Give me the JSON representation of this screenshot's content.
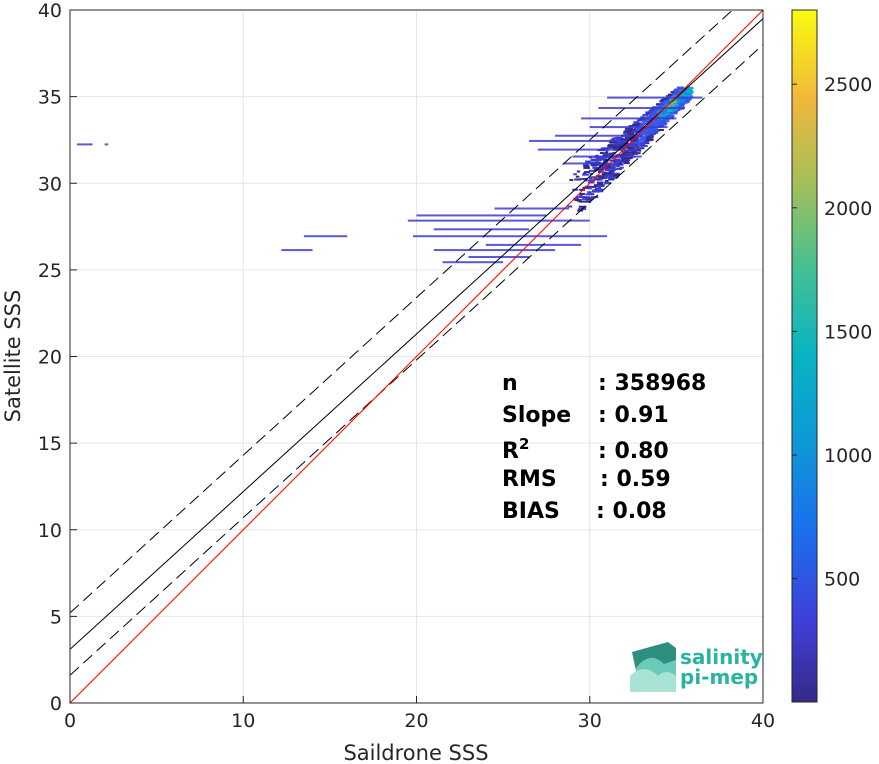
{
  "chart_data": {
    "type": "scatter",
    "subtype": "2d-density-heatmap",
    "xlabel": "Saildrone SSS",
    "ylabel": "Satellite SSS",
    "xlim": [
      0,
      40
    ],
    "ylim": [
      0,
      40
    ],
    "xticks": [
      0,
      10,
      20,
      30,
      40
    ],
    "yticks": [
      0,
      5,
      10,
      15,
      20,
      25,
      30,
      35,
      40
    ],
    "grid": true,
    "colorbar": {
      "colormap": "parula",
      "range": [
        1,
        2800
      ],
      "ticks": [
        500,
        1000,
        1500,
        2000,
        2500
      ]
    },
    "reference_lines": {
      "identity": {
        "slope": 1,
        "intercept": 0,
        "color": "#ff0000"
      },
      "fit": {
        "slope": 0.91,
        "intercept": 3.1,
        "color": "#000000"
      },
      "fit_upper": {
        "slope": 0.91,
        "intercept": 5.2,
        "style": "dashed"
      },
      "fit_lower": {
        "slope": 0.91,
        "intercept": 1.6,
        "style": "dashed"
      }
    },
    "stats": [
      {
        "label": "n",
        "value": ": 358968"
      },
      {
        "label": "Slope",
        "value": ": 0.91"
      },
      {
        "label": "R",
        "sup": "2",
        "value": ": 0.80"
      },
      {
        "label": "RMS",
        "value": ": 0.59"
      },
      {
        "label": "BIAS",
        "value": ": 0.08"
      }
    ],
    "density_clusters": [
      {
        "x": [
          28.5,
          36
        ],
        "y": [
          27.5,
          35.5
        ],
        "weight": "high"
      },
      {
        "x": [
          19,
          31
        ],
        "y": [
          25,
          30
        ],
        "weight": "low"
      },
      {
        "x": [
          12,
          16
        ],
        "y": [
          26,
          27.2
        ],
        "weight": "low"
      },
      {
        "x": [
          0.5,
          2.2
        ],
        "y": [
          32.2,
          32.4
        ],
        "weight": "low"
      }
    ]
  },
  "logo": {
    "line1": "salinity",
    "line2": "pi-mep"
  }
}
